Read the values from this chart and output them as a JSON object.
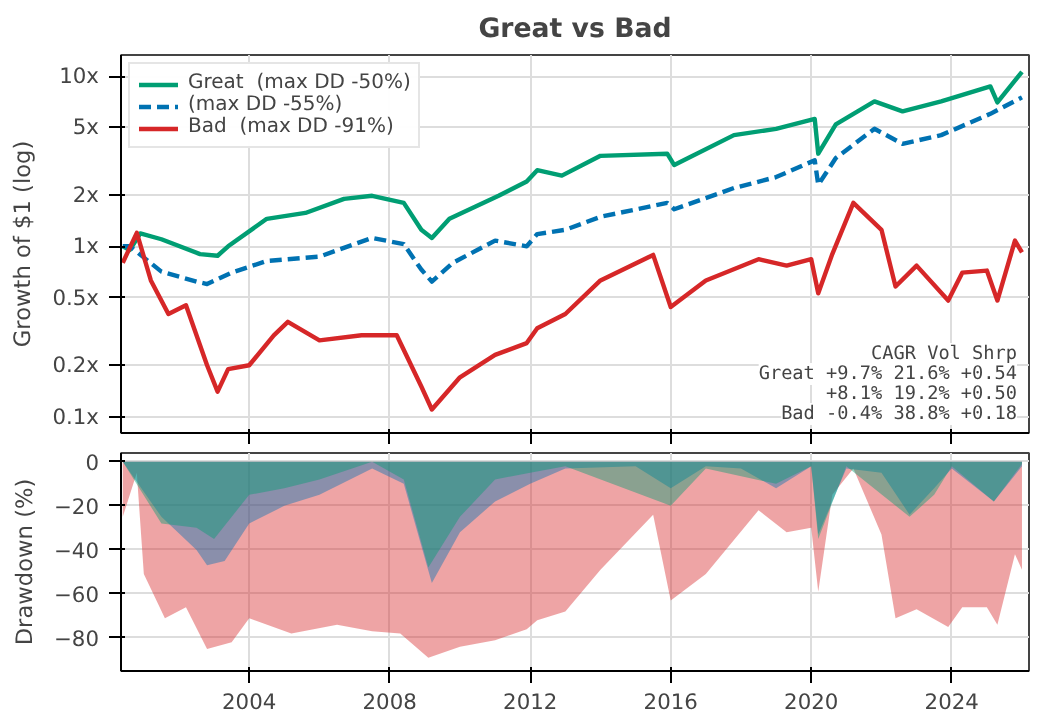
{
  "chart_data": [
    {
      "type": "line",
      "title": "Great vs Bad",
      "ylabel": "Growth of $1 (log)",
      "log": true,
      "grid": true,
      "legend": "top left",
      "tick_labels": "y",
      "xlim": [
        2000.35,
        2026.2
      ],
      "xticks": [
        2004,
        2008,
        2012,
        2016,
        2020,
        2024
      ],
      "ylim": [
        0.08,
        13.3
      ],
      "yticks": [
        {
          "value": 0.1,
          "label": "0.1x"
        },
        {
          "value": 0.2,
          "label": "0.2x"
        },
        {
          "value": 0.5,
          "label": "0.5x"
        },
        {
          "value": 1,
          "label": "1x"
        },
        {
          "value": 2,
          "label": "2x"
        },
        {
          "value": 5,
          "label": "5x"
        },
        {
          "value": 10,
          "label": "10x"
        }
      ],
      "annotations": [
        "CAGR Vol Shrp",
        "Great +9.7% 21.6% +0.54",
        "+8.1% 19.2% +0.50",
        "Bad -0.4% 38.8% +0.18"
      ],
      "series": [
        {
          "name": "Great  (max DD -50%)",
          "color": "#009e73",
          "line_style": "solid",
          "x": [
            2000.4,
            2000.6,
            2000.9,
            2001.5,
            2002.6,
            2003.1,
            2003.4,
            2004.5,
            2005.6,
            2006.7,
            2007.5,
            2008.4,
            2008.9,
            2009.2,
            2009.7,
            2011.1,
            2011.9,
            2012.2,
            2012.9,
            2014.0,
            2015.9,
            2016.1,
            2017.8,
            2019.0,
            2020.1,
            2020.2,
            2020.7,
            2021.8,
            2022.6,
            2023.7,
            2025.1,
            2025.3,
            2026.0
          ],
          "values": [
            1.0,
            0.95,
            1.19,
            1.1,
            0.9,
            0.88,
            1.0,
            1.45,
            1.57,
            1.9,
            1.98,
            1.8,
            1.25,
            1.12,
            1.45,
            1.98,
            2.4,
            2.8,
            2.6,
            3.4,
            3.5,
            3.0,
            4.5,
            4.9,
            5.6,
            3.5,
            5.2,
            7.1,
            6.2,
            7.1,
            8.7,
            7.0,
            10.6
          ]
        },
        {
          "name": "(max DD -55%)",
          "color": "#0072b2",
          "line_style": "dashed",
          "x": [
            2000.4,
            2000.6,
            2001.5,
            2002.5,
            2002.8,
            2003.5,
            2004.5,
            2006.0,
            2007.5,
            2008.4,
            2008.9,
            2009.2,
            2009.8,
            2011.0,
            2011.9,
            2012.2,
            2013.0,
            2014.0,
            2015.9,
            2016.1,
            2017.8,
            2019.0,
            2020.1,
            2020.2,
            2020.7,
            2021.8,
            2022.6,
            2023.7,
            2025.1,
            2026.0
          ],
          "values": [
            1.0,
            1.0,
            0.71,
            0.62,
            0.6,
            0.7,
            0.82,
            0.87,
            1.12,
            1.03,
            0.73,
            0.62,
            0.8,
            1.08,
            1.0,
            1.18,
            1.25,
            1.49,
            1.8,
            1.65,
            2.2,
            2.55,
            3.2,
            2.3,
            3.3,
            4.9,
            4.0,
            4.5,
            6.0,
            7.5
          ]
        },
        {
          "name": "Bad  (max DD -91%)",
          "color": "#d62728",
          "line_style": "solid",
          "x": [
            2000.4,
            2000.8,
            2001.2,
            2001.7,
            2002.2,
            2002.8,
            2003.1,
            2003.4,
            2004.0,
            2004.7,
            2005.1,
            2006.0,
            2007.2,
            2008.2,
            2008.9,
            2009.2,
            2010.0,
            2011.0,
            2011.9,
            2012.2,
            2013.0,
            2014.0,
            2015.5,
            2016.0,
            2017.0,
            2018.5,
            2019.3,
            2020.0,
            2020.2,
            2020.6,
            2021.2,
            2022.0,
            2022.4,
            2023.0,
            2023.9,
            2024.3,
            2025.0,
            2025.3,
            2025.8,
            2026.0
          ],
          "values": [
            0.8,
            1.2,
            0.63,
            0.4,
            0.45,
            0.2,
            0.14,
            0.19,
            0.2,
            0.3,
            0.36,
            0.28,
            0.3,
            0.3,
            0.15,
            0.11,
            0.17,
            0.23,
            0.27,
            0.33,
            0.4,
            0.63,
            0.89,
            0.44,
            0.63,
            0.84,
            0.77,
            0.84,
            0.53,
            0.9,
            1.8,
            1.25,
            0.58,
            0.77,
            0.48,
            0.7,
            0.72,
            0.48,
            1.08,
            0.92
          ]
        }
      ]
    },
    {
      "type": "area",
      "ylabel": "Drawdown (%)",
      "grid": true,
      "legend": false,
      "xlim": [
        2000.35,
        2026.2
      ],
      "xticks": [
        2004,
        2008,
        2012,
        2016,
        2020,
        2024
      ],
      "ylim": [
        -95,
        4
      ],
      "yticks": [
        0,
        -20,
        -40,
        -60,
        -80
      ],
      "series": [
        {
          "color": "#009e73",
          "x": [
            2000.4,
            2001.5,
            2002.5,
            2003.0,
            2004.0,
            2005.0,
            2006.0,
            2007.5,
            2008.4,
            2009.1,
            2010.0,
            2011.0,
            2012.0,
            2013.0,
            2016.0,
            2017.0,
            2019.0,
            2020.0,
            2020.2,
            2021.0,
            2022.8,
            2023.5,
            2024.0,
            2025.2,
            2026.0
          ],
          "values": [
            0,
            -28,
            -30,
            -35,
            -15,
            -12,
            -8,
            0,
            -8,
            -48,
            -25,
            -8,
            -5,
            -2,
            -20,
            -3,
            -10,
            -2,
            -35,
            -2,
            -25,
            -15,
            -2,
            -18,
            -1
          ]
        },
        {
          "color": "#0072b2",
          "x": [
            2000.4,
            2001.5,
            2002.5,
            2002.8,
            2003.3,
            2004.0,
            2005.0,
            2006.0,
            2007.5,
            2008.4,
            2009.2,
            2010.0,
            2011.0,
            2012.0,
            2013.0,
            2015.0,
            2016.0,
            2017.0,
            2018.0,
            2019.0,
            2020.0,
            2020.2,
            2021.0,
            2022.0,
            2022.8,
            2023.5,
            2024.0,
            2025.2,
            2026.0
          ],
          "values": [
            0,
            -25,
            -40,
            -47,
            -45,
            -28,
            -20,
            -15,
            -3,
            -10,
            -55,
            -32,
            -18,
            -10,
            -3,
            -2,
            -12,
            -2,
            -3,
            -12,
            -2,
            -33,
            -3,
            -5,
            -24,
            -12,
            -3,
            -18,
            -2
          ]
        },
        {
          "color": "#d62728",
          "x": [
            2000.4,
            2000.8,
            2001.0,
            2001.6,
            2002.2,
            2002.8,
            2003.5,
            2004.0,
            2005.2,
            2006.5,
            2007.5,
            2008.3,
            2009.1,
            2010.0,
            2011.0,
            2011.9,
            2012.2,
            2013.0,
            2014.0,
            2015.5,
            2016.0,
            2017.0,
            2018.5,
            2019.3,
            2020.0,
            2020.2,
            2020.6,
            2021.2,
            2022.0,
            2022.4,
            2023.0,
            2023.9,
            2024.3,
            2025.0,
            2025.3,
            2025.8,
            2026.0
          ],
          "values": [
            -25,
            -5,
            -51,
            -71,
            -66,
            -85,
            -82,
            -71,
            -78,
            -74,
            -77,
            -78,
            -89,
            -84,
            -81,
            -76,
            -72,
            -68,
            -49,
            -24,
            -63,
            -51,
            -22,
            -32,
            -30,
            -59,
            -15,
            -3,
            -33,
            -71,
            -67,
            -75,
            -66,
            -66,
            -74,
            -42,
            -49
          ]
        }
      ]
    }
  ]
}
